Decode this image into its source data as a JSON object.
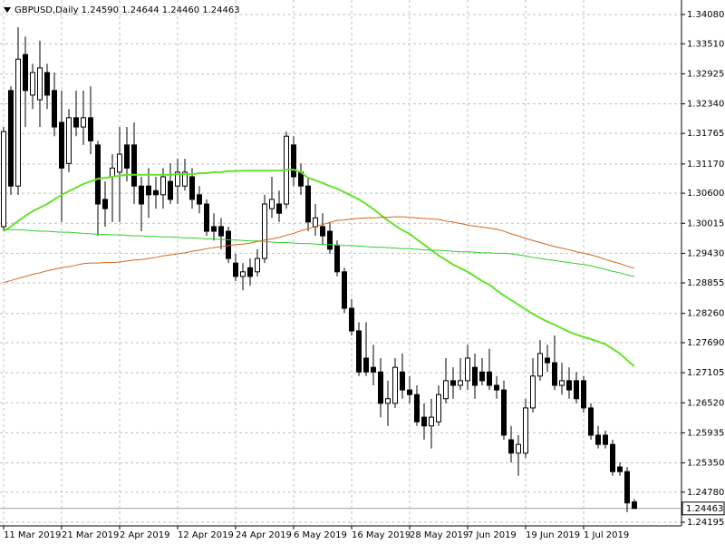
{
  "chart_data": {
    "type": "candlestick",
    "title": "GBPUSD,Daily 1.24590 1.24644 1.24460 1.24463",
    "categories": [
      "11 Mar 2019",
      null,
      null,
      null,
      null,
      null,
      null,
      null,
      "21 Mar 2019",
      null,
      null,
      null,
      null,
      null,
      null,
      null,
      "2 Apr 2019",
      null,
      null,
      null,
      null,
      null,
      null,
      null,
      "12 Apr 2019",
      null,
      null,
      null,
      null,
      null,
      null,
      null,
      "24 Apr 2019",
      null,
      null,
      null,
      null,
      null,
      null,
      null,
      "6 May 2019",
      null,
      null,
      null,
      null,
      null,
      null,
      null,
      "16 May 2019",
      null,
      null,
      null,
      null,
      null,
      null,
      null,
      "28 May 2019",
      null,
      null,
      null,
      null,
      null,
      null,
      null,
      "7 Jun 2019",
      null,
      null,
      null,
      null,
      null,
      null,
      null,
      "19 Jun 2019",
      null,
      null,
      null,
      null,
      null,
      null,
      null,
      "1 Jul 2019",
      null,
      null,
      null,
      null,
      null,
      null,
      null
    ],
    "open": [
      1.2995,
      1.326,
      1.3074,
      1.333,
      1.3251,
      1.3242,
      1.3295,
      1.326,
      1.3198,
      1.3118,
      1.3207,
      1.3189,
      1.3207,
      1.3154,
      1.3048,
      1.3092,
      1.3101,
      1.3154,
      1.3154,
      1.3074,
      1.3074,
      1.3065,
      1.3057,
      1.3083,
      1.3074,
      1.3074,
      1.3092,
      1.3057,
      1.3039,
      1.2995,
      1.2995,
      1.2986,
      1.2924,
      1.2898,
      1.2915,
      1.2907,
      1.2933,
      1.303,
      1.3039,
      1.3039,
      1.3154,
      1.3101,
      1.3074,
      1.2995,
      1.2995,
      1.2986,
      1.2959,
      1.2907,
      1.2836,
      1.2792,
      1.2739,
      1.2721,
      1.2712,
      1.2651,
      1.2651,
      1.2712,
      1.2677,
      1.2668,
      1.2624,
      1.2607,
      1.2615,
      1.266,
      1.2695,
      1.2686,
      1.2695,
      1.2721,
      1.2712,
      1.2712,
      1.2686,
      1.2677,
      1.258,
      1.2554,
      1.2554,
      1.2642,
      1.2704,
      1.2739,
      1.273,
      1.2686,
      1.2695,
      1.2695,
      1.2695,
      1.2642,
      1.2589,
      1.2589,
      1.2571,
      1.2527,
      1.2518,
      1.2459
    ],
    "high": [
      1.3189,
      1.3268,
      1.3383,
      1.3365,
      1.3312,
      1.3357,
      1.3312,
      1.3295,
      1.326,
      1.3224,
      1.326,
      1.326,
      1.3268,
      1.3162,
      1.3083,
      1.3136,
      1.3189,
      1.3189,
      1.3198,
      1.3092,
      1.3109,
      1.3092,
      1.3109,
      1.3118,
      1.3127,
      1.3127,
      1.3109,
      1.3074,
      1.3048,
      1.3021,
      1.3012,
      1.2995,
      1.2942,
      1.2924,
      1.2933,
      1.2951,
      1.3057,
      1.3092,
      1.3065,
      1.318,
      1.3171,
      1.3118,
      1.3092,
      1.3039,
      1.3021,
      1.3004,
      1.2968,
      1.2915,
      1.2854,
      1.2809,
      1.2809,
      1.2765,
      1.2739,
      1.2695,
      1.2739,
      1.2748,
      1.2704,
      1.2686,
      1.2651,
      1.266,
      1.2686,
      1.2739,
      1.2721,
      1.2739,
      1.2765,
      1.2748,
      1.2739,
      1.2757,
      1.2704,
      1.2695,
      1.2607,
      1.2589,
      1.266,
      1.2739,
      1.2774,
      1.2765,
      1.2783,
      1.273,
      1.2721,
      1.2712,
      1.2704,
      1.2651,
      1.2607,
      1.2598,
      1.258,
      1.2536,
      1.2527,
      1.24644
    ],
    "low": [
      1.2986,
      1.3057,
      1.3057,
      1.3189,
      1.3224,
      1.3189,
      1.3224,
      1.3171,
      1.3004,
      1.3101,
      1.3171,
      1.3154,
      1.3136,
      1.2977,
      1.2995,
      1.3004,
      1.3004,
      1.3083,
      1.3039,
      1.2986,
      1.3012,
      1.303,
      1.303,
      1.3039,
      1.3039,
      1.3065,
      1.303,
      1.3021,
      1.2977,
      1.2968,
      1.2951,
      1.2924,
      1.2889,
      1.2871,
      1.288,
      1.2898,
      1.2924,
      1.3012,
      1.3004,
      1.303,
      1.3074,
      1.3057,
      1.2986,
      1.2977,
      1.2959,
      1.2942,
      1.2898,
      1.2827,
      1.2783,
      1.2704,
      1.2704,
      1.2686,
      1.2624,
      1.2607,
      1.2642,
      1.266,
      1.2651,
      1.2607,
      1.258,
      1.2563,
      1.2607,
      1.2651,
      1.266,
      1.2677,
      1.2677,
      1.266,
      1.2686,
      1.2677,
      1.266,
      1.258,
      1.2536,
      1.251,
      1.2545,
      1.2633,
      1.2695,
      1.2712,
      1.2677,
      1.2668,
      1.266,
      1.2651,
      1.2633,
      1.258,
      1.2563,
      1.2563,
      1.251,
      1.251,
      1.2439,
      1.2446
    ],
    "close": [
      1.318,
      1.3074,
      1.3321,
      1.326,
      1.3295,
      1.3304,
      1.3251,
      1.3189,
      1.3109,
      1.3207,
      1.3189,
      1.3207,
      1.3162,
      1.3039,
      1.303,
      1.3109,
      1.3136,
      1.3109,
      1.3074,
      1.3039,
      1.3057,
      1.3057,
      1.3092,
      1.3048,
      1.3101,
      1.3101,
      1.3048,
      1.3039,
      1.2986,
      1.2986,
      1.2977,
      1.2933,
      1.2898,
      1.2907,
      1.2898,
      1.2933,
      1.3039,
      1.3048,
      1.3021,
      1.3171,
      1.3092,
      1.3074,
      1.3004,
      1.3012,
      1.2977,
      1.2951,
      1.2907,
      1.2836,
      1.2792,
      1.2712,
      1.2712,
      1.2712,
      1.2651,
      1.266,
      1.2721,
      1.2677,
      1.2668,
      1.2615,
      1.2607,
      1.2624,
      1.2668,
      1.2695,
      1.2686,
      1.2695,
      1.2739,
      1.2686,
      1.2695,
      1.2686,
      1.2677,
      1.2589,
      1.2554,
      1.2571,
      1.2642,
      1.2704,
      1.2748,
      1.273,
      1.2686,
      1.2695,
      1.2677,
      1.266,
      1.2642,
      1.2589,
      1.2571,
      1.2571,
      1.2518,
      1.2518,
      1.2457,
      1.24463
    ],
    "overlays": [
      {
        "color": "#66e22a",
        "width": 2,
        "values": [
          1.2986,
          1.2995,
          1.3006,
          1.3016,
          1.3025,
          1.3032,
          1.3039,
          1.3048,
          1.3057,
          1.3064,
          1.3071,
          1.3078,
          1.3083,
          1.3088,
          1.309,
          1.3092,
          1.3094,
          1.3096,
          1.3096,
          1.3096,
          1.3096,
          1.3096,
          1.3096,
          1.3096,
          1.3097,
          1.3097,
          1.3097,
          1.3099,
          1.3099,
          1.3101,
          1.3101,
          1.3103,
          1.3103,
          1.3104,
          1.3104,
          1.3104,
          1.3104,
          1.3104,
          1.3104,
          1.3106,
          1.3106,
          1.3101,
          1.309,
          1.3085,
          1.308,
          1.3074,
          1.3069,
          1.3062,
          1.3055,
          1.3048,
          1.3039,
          1.3029,
          1.3018,
          1.3007,
          1.2997,
          1.2988,
          1.2981,
          1.297,
          1.296,
          1.2949,
          1.2939,
          1.293,
          1.2921,
          1.2914,
          1.2907,
          1.2898,
          1.2889,
          1.2882,
          1.2871,
          1.2861,
          1.2852,
          1.2843,
          1.2834,
          1.2825,
          1.2817,
          1.281,
          1.2804,
          1.2797,
          1.279,
          1.2785,
          1.278,
          1.2776,
          1.2771,
          1.2766,
          1.2757,
          1.2748,
          1.2735,
          1.2723
        ]
      },
      {
        "color": "#33cc33",
        "width": 1,
        "values": [
          1.299,
          1.2989,
          1.2989,
          1.2988,
          1.2987,
          1.2986,
          1.2986,
          1.2985,
          1.2984,
          1.2984,
          1.2983,
          1.2982,
          1.2981,
          1.298,
          1.298,
          1.2979,
          1.2979,
          1.2978,
          1.2977,
          1.2977,
          1.2976,
          1.2976,
          1.2975,
          1.2975,
          1.2974,
          1.2973,
          1.2973,
          1.2972,
          1.2971,
          1.2971,
          1.297,
          1.2969,
          1.2969,
          1.2968,
          1.2967,
          1.2967,
          1.2966,
          1.2965,
          1.2964,
          1.2964,
          1.2963,
          1.2962,
          1.2962,
          1.2961,
          1.296,
          1.296,
          1.2959,
          1.2958,
          1.2958,
          1.2957,
          1.2956,
          1.2955,
          1.2955,
          1.2954,
          1.2953,
          1.2952,
          1.2952,
          1.2951,
          1.295,
          1.2949,
          1.2949,
          1.2948,
          1.2947,
          1.2946,
          1.2946,
          1.2945,
          1.2944,
          1.2944,
          1.2943,
          1.2943,
          1.2942,
          1.294,
          1.2938,
          1.2935,
          1.2933,
          1.2931,
          1.2929,
          1.2927,
          1.2925,
          1.2923,
          1.2921,
          1.2919,
          1.2915,
          1.2912,
          1.2908,
          1.2905,
          1.2901,
          1.2898
        ]
      },
      {
        "color": "#d2691e",
        "width": 1,
        "values": [
          1.2886,
          1.289,
          1.2894,
          1.2898,
          1.2902,
          1.2905,
          1.2909,
          1.2912,
          1.2915,
          1.2917,
          1.292,
          1.2923,
          1.2924,
          1.2924,
          1.2925,
          1.2925,
          1.2926,
          1.2928,
          1.293,
          1.2931,
          1.2933,
          1.2935,
          1.2938,
          1.294,
          1.2942,
          1.2944,
          1.2947,
          1.2949,
          1.2952,
          1.2954,
          1.2956,
          1.2958,
          1.296,
          1.2961,
          1.2963,
          1.2966,
          1.2969,
          1.2971,
          1.2974,
          1.2978,
          1.2982,
          1.2987,
          1.2991,
          1.2995,
          1.2999,
          1.3003,
          1.3007,
          1.3008,
          1.301,
          1.3011,
          1.3012,
          1.3012,
          1.3013,
          1.3013,
          1.3014,
          1.3014,
          1.3013,
          1.3012,
          1.3011,
          1.301,
          1.3009,
          1.3006,
          1.3004,
          1.3001,
          1.2998,
          1.2996,
          1.2994,
          1.2992,
          1.299,
          1.2986,
          1.2981,
          1.2977,
          1.2972,
          1.2968,
          1.2964,
          1.296,
          1.2956,
          1.2953,
          1.295,
          1.2946,
          1.2943,
          1.294,
          1.2936,
          1.2931,
          1.2927,
          1.2923,
          1.2918,
          1.2914
        ]
      }
    ],
    "last_price": 1.24463,
    "ylim": [
      1.24124,
      1.34362
    ],
    "yticks": [
      {
        "value": 1.3408,
        "label": "1.34080"
      },
      {
        "value": 1.3351,
        "label": "1.33510"
      },
      1.32925,
      {
        "value": 1.3234,
        "label": "1.32340"
      },
      1.31765,
      {
        "value": 1.3117,
        "label": "1.31170"
      },
      {
        "value": 1.306,
        "label": "1.30600"
      },
      1.30015,
      {
        "value": 1.2943,
        "label": "1.29430"
      },
      1.28855,
      {
        "value": 1.2826,
        "label": "1.28260"
      },
      {
        "value": 1.2769,
        "label": "1.27690"
      },
      1.27105,
      {
        "value": 1.2652,
        "label": "1.26520"
      },
      1.25935,
      {
        "value": 1.2535,
        "label": "1.25350"
      },
      {
        "value": 1.2478,
        "label": "1.24780"
      },
      1.24195
    ],
    "grid": true
  }
}
